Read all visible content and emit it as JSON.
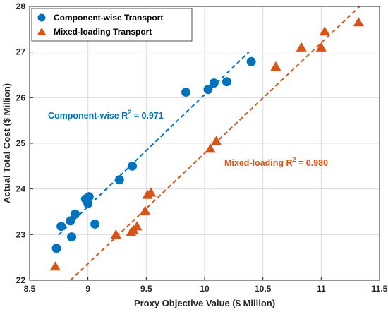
{
  "chart_data": {
    "type": "scatter",
    "xlabel": "Proxy Objective Value ($ Million)",
    "ylabel": "Actual Total Cost ($ Million)",
    "xlim": [
      8.5,
      11.5
    ],
    "ylim": [
      22,
      28
    ],
    "xticks": [
      "8.5",
      "9",
      "9.5",
      "10",
      "10.5",
      "11",
      "11.5"
    ],
    "yticks": [
      "22",
      "23",
      "24",
      "25",
      "26",
      "27",
      "28"
    ],
    "grid": true,
    "legend_position": "top-left",
    "series": [
      {
        "name": "Component-wise Transport",
        "marker": "circle",
        "color": "#0072BD",
        "x": [
          8.73,
          8.77,
          8.85,
          8.86,
          8.89,
          8.98,
          9.0,
          9.01,
          9.06,
          9.27,
          9.38,
          9.84,
          10.03,
          10.08,
          10.19,
          10.4
        ],
        "y": [
          22.7,
          23.18,
          23.3,
          22.95,
          23.45,
          23.78,
          23.68,
          23.83,
          23.23,
          24.2,
          24.5,
          26.12,
          26.18,
          26.32,
          26.35,
          26.79
        ],
        "trendline": {
          "x": [
            8.75,
            10.38
          ],
          "y": [
            23.0,
            27.0
          ]
        }
      },
      {
        "name": "Mixed-loading Transport",
        "marker": "triangle",
        "color": "#D95319",
        "x": [
          8.72,
          9.24,
          9.37,
          9.39,
          9.42,
          9.49,
          9.51,
          9.54,
          10.05,
          10.1,
          10.61,
          10.83,
          11.0,
          11.03,
          11.32
        ],
        "y": [
          22.3,
          23.0,
          23.05,
          23.1,
          23.18,
          23.52,
          23.87,
          23.92,
          24.88,
          25.05,
          26.68,
          27.1,
          27.1,
          27.45,
          27.65
        ],
        "trendline": {
          "x": [
            8.85,
            11.33
          ],
          "y": [
            22.0,
            28.0
          ]
        }
      }
    ],
    "annotations": [
      {
        "prefix": "Component-wise R",
        "sup": "2",
        "suffix": " = 0.971",
        "color": "#0072BD"
      },
      {
        "prefix": "Mixed-loading R",
        "sup": "2",
        "suffix": " = 0.980",
        "color": "#D95319"
      }
    ]
  }
}
